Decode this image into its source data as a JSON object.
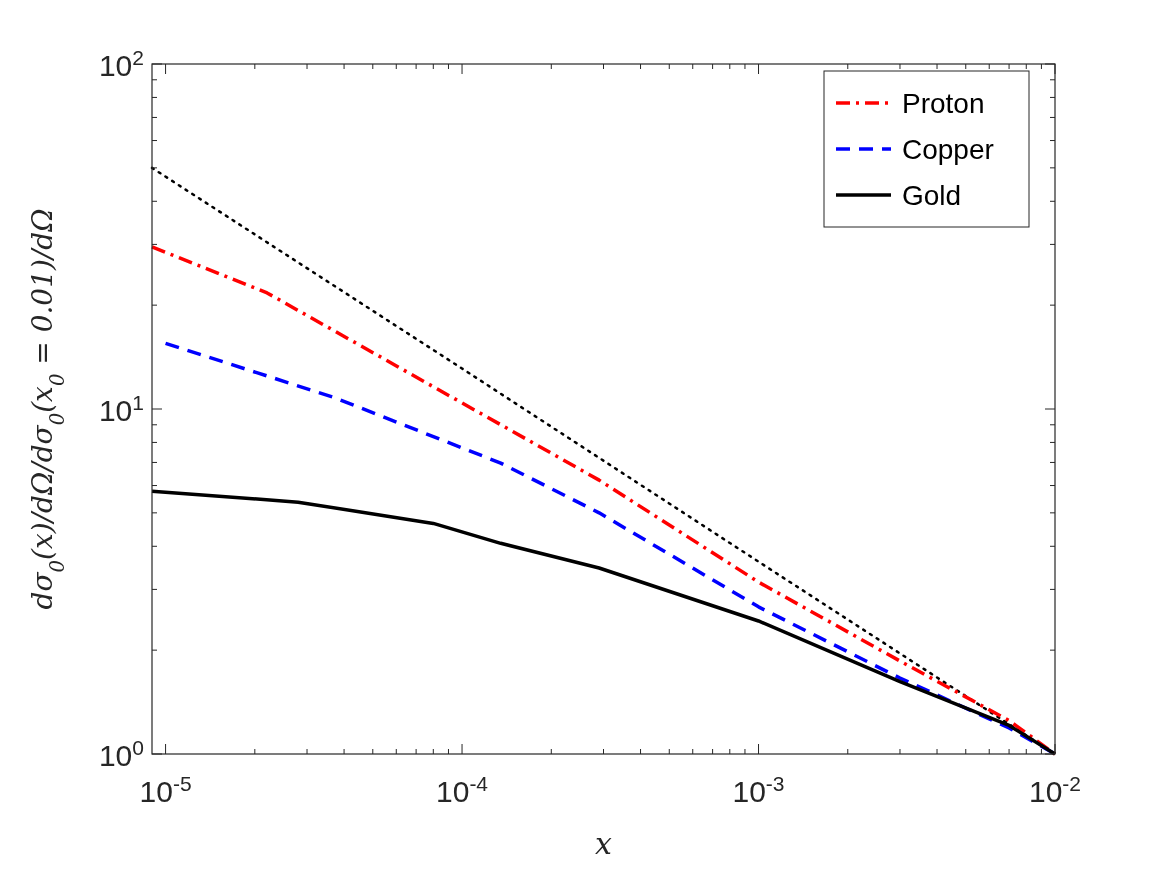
{
  "chart_data": {
    "type": "line",
    "xlabel": "x",
    "ylabel": "dσ$_{0}$(x)/dΩ/dσ$_{0}$(x$_{0}$ = 0.01)/dΩ",
    "log": "xy",
    "xlim": [
      9e-06,
      0.01
    ],
    "ylim": [
      1,
      100
    ],
    "xticks": [
      {
        "value": 1e-05,
        "label": "10$^{-5}$"
      },
      {
        "value": 2e-05,
        "label": null
      },
      {
        "value": 3e-05,
        "label": null
      },
      {
        "value": 4e-05,
        "label": null
      },
      {
        "value": 5e-05,
        "label": null
      },
      {
        "value": 6e-05,
        "label": null
      },
      {
        "value": 7e-05,
        "label": null
      },
      {
        "value": 8e-05,
        "label": null
      },
      {
        "value": 9e-05,
        "label": null
      },
      {
        "value": 0.0001,
        "label": "10$^{-4}$"
      },
      {
        "value": 0.0002,
        "label": null
      },
      {
        "value": 0.0003,
        "label": null
      },
      {
        "value": 0.0004,
        "label": null
      },
      {
        "value": 0.0005,
        "label": null
      },
      {
        "value": 0.0006,
        "label": null
      },
      {
        "value": 0.0007,
        "label": null
      },
      {
        "value": 0.0008,
        "label": null
      },
      {
        "value": 0.0009,
        "label": null
      },
      {
        "value": 0.001,
        "label": "10$^{-3}$"
      },
      {
        "value": 0.002,
        "label": null
      },
      {
        "value": 0.003,
        "label": null
      },
      {
        "value": 0.004,
        "label": null
      },
      {
        "value": 0.005,
        "label": null
      },
      {
        "value": 0.006,
        "label": null
      },
      {
        "value": 0.007,
        "label": null
      },
      {
        "value": 0.008,
        "label": null
      },
      {
        "value": 0.009,
        "label": null
      },
      {
        "value": 0.01,
        "label": "10$^{-2}$"
      }
    ],
    "yticks": [
      {
        "value": 1,
        "label": "10$^{0}$"
      },
      {
        "value": 2,
        "label": null
      },
      {
        "value": 3,
        "label": null
      },
      {
        "value": 4,
        "label": null
      },
      {
        "value": 5,
        "label": null
      },
      {
        "value": 6,
        "label": null
      },
      {
        "value": 7,
        "label": null
      },
      {
        "value": 8,
        "label": null
      },
      {
        "value": 9,
        "label": null
      },
      {
        "value": 10,
        "label": "10$^{1}$"
      },
      {
        "value": 20,
        "label": null
      },
      {
        "value": 30,
        "label": null
      },
      {
        "value": 40,
        "label": null
      },
      {
        "value": 50,
        "label": null
      },
      {
        "value": 60,
        "label": null
      },
      {
        "value": 70,
        "label": null
      },
      {
        "value": 80,
        "label": null
      },
      {
        "value": 90,
        "label": null
      },
      {
        "value": 100,
        "label": "10$^{2}$"
      }
    ],
    "legend": "top right",
    "grid": false,
    "series": [
      {
        "color": "#000000",
        "line_style": "dotted",
        "x": [
          9e-06,
          0.0001,
          0.001,
          0.01
        ],
        "values": [
          50,
          13.1,
          3.61,
          1
        ]
      },
      {
        "name": "Proton",
        "color": "#ff0000",
        "line_style": "dashdot",
        "x": [
          9e-06,
          2.2e-05,
          8e-05,
          0.00029,
          0.001,
          0.003,
          0.007,
          0.01
        ],
        "values": [
          29.5,
          21.7,
          11.6,
          6.22,
          3.15,
          1.86,
          1.25,
          1
        ]
      },
      {
        "name": "Copper",
        "color": "#0000ff",
        "line_style": "dashed",
        "x": [
          1e-05,
          3.7e-05,
          0.000135,
          0.00029,
          0.001,
          0.003,
          0.007,
          0.01
        ],
        "values": [
          15.5,
          10.8,
          6.97,
          5.0,
          2.67,
          1.66,
          1.19,
          1
        ]
      },
      {
        "name": "Gold",
        "color": "#000000",
        "line_style": "solid",
        "x": [
          9e-06,
          2.8e-05,
          8e-05,
          0.000135,
          0.00029,
          0.001,
          0.003,
          0.007,
          0.01
        ],
        "values": [
          5.78,
          5.37,
          4.66,
          4.08,
          3.46,
          2.43,
          1.62,
          1.21,
          1
        ]
      }
    ]
  }
}
